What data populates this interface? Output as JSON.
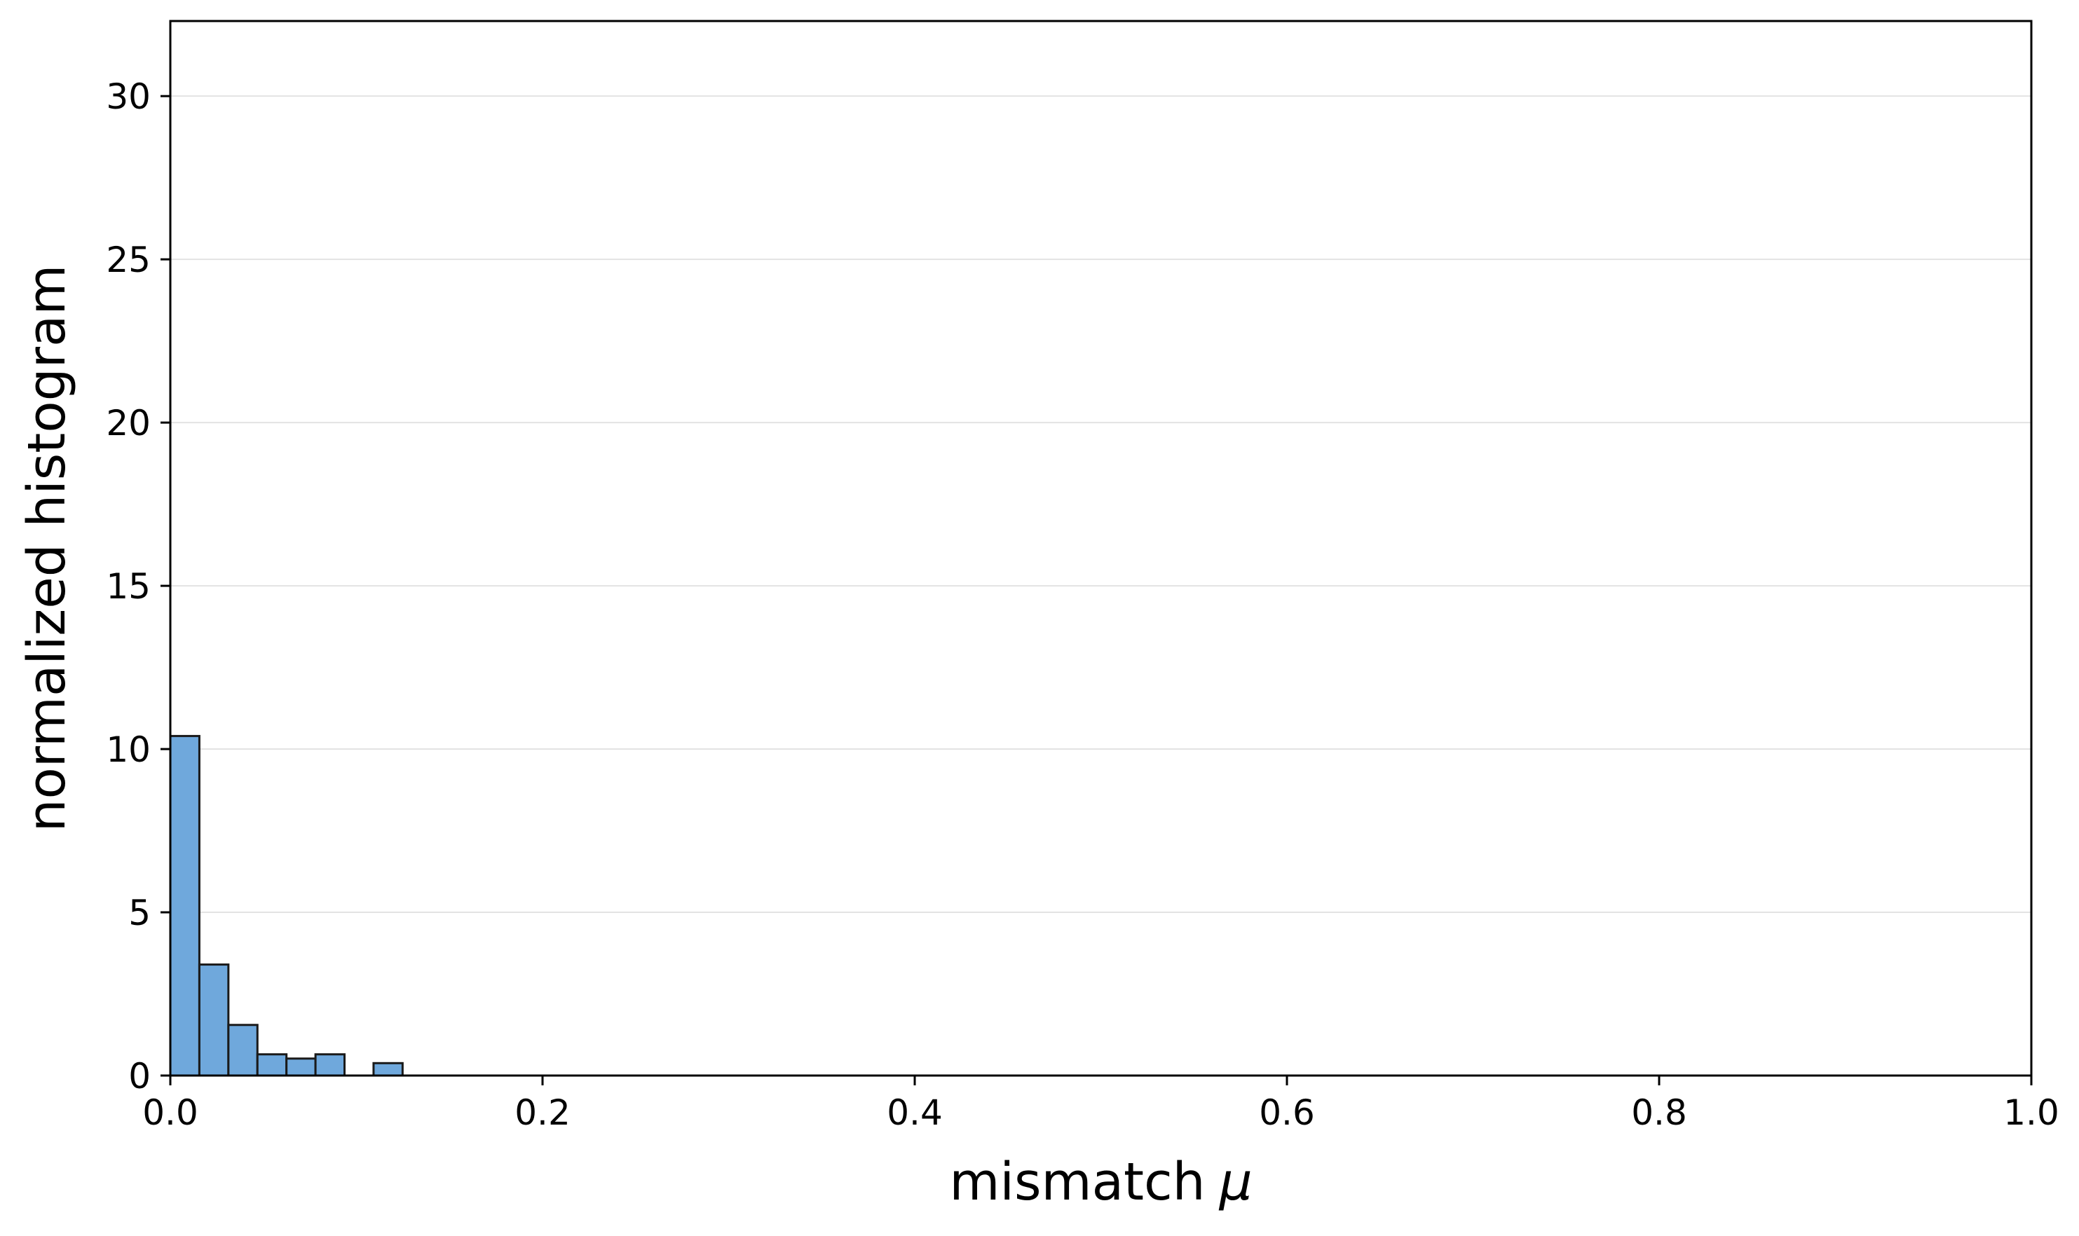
{
  "chart_data": {
    "type": "bar",
    "xlabel": "mismatch",
    "xlabel_symbol": "μ",
    "ylabel": "normalized histogram",
    "xlim": [
      0.0,
      1.0
    ],
    "ylim": [
      0,
      32.3
    ],
    "bin_width": 0.0156,
    "bins": [
      {
        "x0": 0.0,
        "value": 10.4
      },
      {
        "x0": 0.0156,
        "value": 3.4
      },
      {
        "x0": 0.0312,
        "value": 1.55
      },
      {
        "x0": 0.0468,
        "value": 0.65
      },
      {
        "x0": 0.0624,
        "value": 0.52
      },
      {
        "x0": 0.078,
        "value": 0.65
      },
      {
        "x0": 0.1092,
        "value": 0.38
      }
    ],
    "x_ticks": [
      {
        "value": 0.0,
        "label": "0.0"
      },
      {
        "value": 0.2,
        "label": "0.2"
      },
      {
        "value": 0.4,
        "label": "0.4"
      },
      {
        "value": 0.6,
        "label": "0.6"
      },
      {
        "value": 0.8,
        "label": "0.8"
      },
      {
        "value": 1.0,
        "label": "1.0"
      }
    ],
    "y_ticks": [
      {
        "value": 0,
        "label": "0"
      },
      {
        "value": 5,
        "label": "5"
      },
      {
        "value": 10,
        "label": "10"
      },
      {
        "value": 15,
        "label": "15"
      },
      {
        "value": 20,
        "label": "20"
      },
      {
        "value": 25,
        "label": "25"
      },
      {
        "value": 30,
        "label": "30"
      }
    ],
    "grid": {
      "horizontal": true,
      "vertical": false
    },
    "colors": {
      "bar_fill": "#6fa8dc",
      "bar_edge": "#1a1a1a",
      "grid": "#e3e3e3",
      "axis": "#000000"
    }
  }
}
